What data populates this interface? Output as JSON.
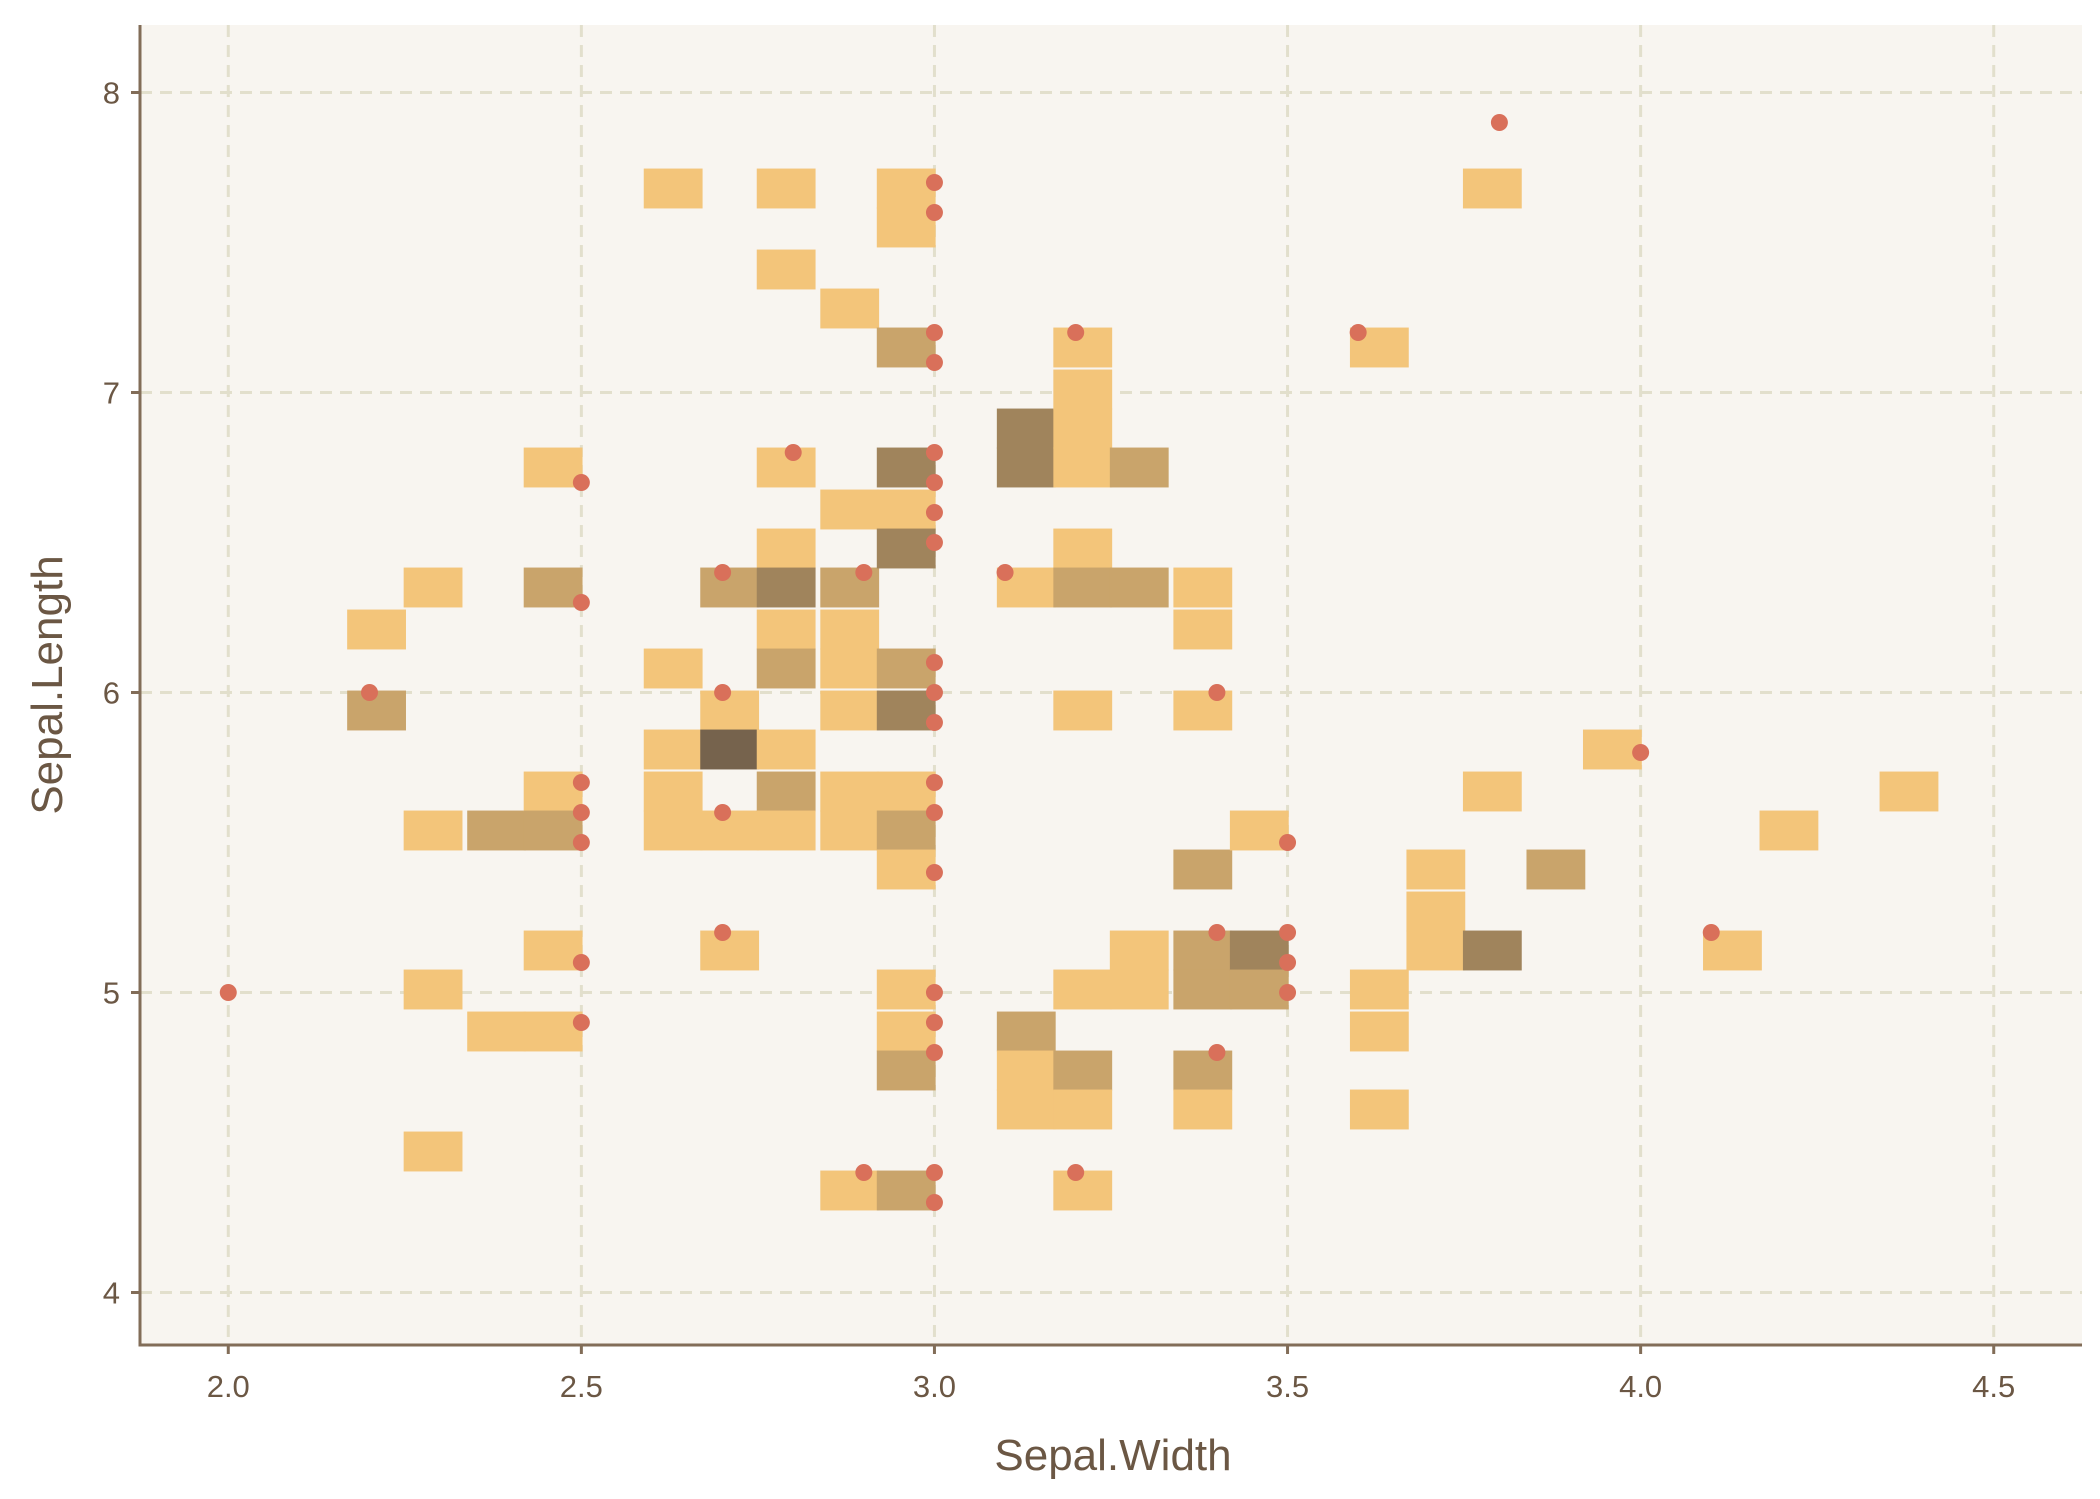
{
  "chart_data": {
    "type": "heatmap",
    "title": "",
    "xlabel": "Sepal.Width",
    "ylabel": "Sepal.Length",
    "xlim": [
      1.875,
      4.625
    ],
    "ylim": [
      3.825,
      8.225
    ],
    "grid": true,
    "legend": "none",
    "x_ticks": [
      2.0,
      2.5,
      3.0,
      3.5,
      4.0,
      4.5
    ],
    "x_tick_labels": [
      "2.0",
      "2.5",
      "3.0",
      "3.5",
      "4.0",
      "4.5"
    ],
    "y_ticks": [
      4,
      5,
      6,
      7,
      8
    ],
    "y_tick_labels": [
      "4",
      "5",
      "6",
      "7",
      "8"
    ],
    "bin_width": {
      "x": 0.0833,
      "y": 0.133
    },
    "bins_columns": [
      "x_center",
      "y_center",
      "count"
    ],
    "bins": [
      [
        2.21,
        6.21,
        1
      ],
      [
        2.21,
        5.94,
        2
      ],
      [
        2.29,
        6.35,
        1
      ],
      [
        2.29,
        5.54,
        1
      ],
      [
        2.29,
        5.01,
        1
      ],
      [
        2.29,
        4.47,
        1
      ],
      [
        2.38,
        5.54,
        2
      ],
      [
        2.38,
        4.87,
        1
      ],
      [
        2.46,
        6.75,
        1
      ],
      [
        2.46,
        6.35,
        2
      ],
      [
        2.46,
        5.67,
        1
      ],
      [
        2.46,
        5.54,
        2
      ],
      [
        2.46,
        5.14,
        1
      ],
      [
        2.46,
        4.87,
        1
      ],
      [
        2.63,
        7.68,
        1
      ],
      [
        2.63,
        6.08,
        1
      ],
      [
        2.63,
        5.81,
        1
      ],
      [
        2.63,
        5.67,
        1
      ],
      [
        2.63,
        5.54,
        1
      ],
      [
        2.71,
        6.35,
        2
      ],
      [
        2.71,
        5.94,
        1
      ],
      [
        2.71,
        5.81,
        4
      ],
      [
        2.71,
        5.54,
        1
      ],
      [
        2.71,
        5.14,
        1
      ],
      [
        2.79,
        7.68,
        1
      ],
      [
        2.79,
        7.41,
        1
      ],
      [
        2.79,
        6.75,
        1
      ],
      [
        2.79,
        6.48,
        1
      ],
      [
        2.79,
        6.35,
        3
      ],
      [
        2.79,
        6.21,
        1
      ],
      [
        2.79,
        6.08,
        2
      ],
      [
        2.79,
        5.81,
        1
      ],
      [
        2.79,
        5.67,
        2
      ],
      [
        2.79,
        5.54,
        1
      ],
      [
        2.88,
        7.28,
        1
      ],
      [
        2.88,
        6.61,
        1
      ],
      [
        2.88,
        6.35,
        2
      ],
      [
        2.88,
        6.21,
        1
      ],
      [
        2.88,
        6.08,
        1
      ],
      [
        2.88,
        5.94,
        1
      ],
      [
        2.88,
        5.67,
        1
      ],
      [
        2.88,
        5.54,
        1
      ],
      [
        2.88,
        4.34,
        1
      ],
      [
        2.96,
        7.68,
        1
      ],
      [
        2.96,
        7.55,
        1
      ],
      [
        2.96,
        7.15,
        2
      ],
      [
        2.96,
        6.75,
        3
      ],
      [
        2.96,
        6.61,
        1
      ],
      [
        2.96,
        6.48,
        3
      ],
      [
        2.96,
        6.08,
        2
      ],
      [
        2.96,
        5.94,
        3
      ],
      [
        2.96,
        5.67,
        1
      ],
      [
        2.96,
        5.54,
        2
      ],
      [
        2.96,
        5.41,
        1
      ],
      [
        2.96,
        5.01,
        1
      ],
      [
        2.96,
        4.87,
        1
      ],
      [
        2.96,
        4.74,
        2
      ],
      [
        2.96,
        4.34,
        2
      ],
      [
        3.13,
        6.88,
        3
      ],
      [
        3.13,
        6.75,
        3
      ],
      [
        3.13,
        6.35,
        1
      ],
      [
        3.13,
        4.87,
        2
      ],
      [
        3.13,
        4.74,
        1
      ],
      [
        3.13,
        4.61,
        1
      ],
      [
        3.21,
        7.15,
        1
      ],
      [
        3.21,
        7.01,
        1
      ],
      [
        3.21,
        6.88,
        1
      ],
      [
        3.21,
        6.75,
        1
      ],
      [
        3.21,
        6.48,
        1
      ],
      [
        3.21,
        6.35,
        2
      ],
      [
        3.21,
        5.94,
        1
      ],
      [
        3.21,
        5.01,
        1
      ],
      [
        3.21,
        4.74,
        2
      ],
      [
        3.21,
        4.61,
        1
      ],
      [
        3.21,
        4.34,
        1
      ],
      [
        3.29,
        6.75,
        2
      ],
      [
        3.29,
        6.35,
        2
      ],
      [
        3.29,
        5.14,
        1
      ],
      [
        3.29,
        5.01,
        1
      ],
      [
        3.38,
        6.35,
        1
      ],
      [
        3.38,
        6.21,
        1
      ],
      [
        3.38,
        5.94,
        1
      ],
      [
        3.38,
        5.41,
        2
      ],
      [
        3.38,
        5.14,
        2
      ],
      [
        3.38,
        5.01,
        2
      ],
      [
        3.38,
        4.74,
        2
      ],
      [
        3.38,
        4.61,
        1
      ],
      [
        3.46,
        5.54,
        1
      ],
      [
        3.46,
        5.14,
        3
      ],
      [
        3.46,
        5.01,
        2
      ],
      [
        3.63,
        7.15,
        1
      ],
      [
        3.63,
        5.01,
        1
      ],
      [
        3.63,
        4.87,
        1
      ],
      [
        3.63,
        4.61,
        1
      ],
      [
        3.71,
        5.41,
        1
      ],
      [
        3.71,
        5.27,
        1
      ],
      [
        3.71,
        5.14,
        1
      ],
      [
        3.79,
        7.68,
        1
      ],
      [
        3.79,
        5.67,
        1
      ],
      [
        3.79,
        5.14,
        3
      ],
      [
        3.88,
        5.41,
        2
      ],
      [
        3.96,
        5.81,
        1
      ],
      [
        4.13,
        5.14,
        1
      ],
      [
        4.21,
        5.54,
        1
      ],
      [
        4.38,
        5.67,
        1
      ]
    ],
    "points_columns": [
      "x",
      "y"
    ],
    "points": [
      [
        2.0,
        5.0
      ],
      [
        2.2,
        6.0
      ],
      [
        2.5,
        6.7
      ],
      [
        2.5,
        6.3
      ],
      [
        2.5,
        5.7
      ],
      [
        2.5,
        5.6
      ],
      [
        2.5,
        5.5
      ],
      [
        2.5,
        5.1
      ],
      [
        2.5,
        4.9
      ],
      [
        2.7,
        6.4
      ],
      [
        2.7,
        6.0
      ],
      [
        2.7,
        5.6
      ],
      [
        2.7,
        5.2
      ],
      [
        2.8,
        6.8
      ],
      [
        2.9,
        6.4
      ],
      [
        2.9,
        4.4
      ],
      [
        3.0,
        7.7
      ],
      [
        3.0,
        7.6
      ],
      [
        3.0,
        7.2
      ],
      [
        3.0,
        7.1
      ],
      [
        3.0,
        6.8
      ],
      [
        3.0,
        6.7
      ],
      [
        3.0,
        6.6
      ],
      [
        3.0,
        6.5
      ],
      [
        3.0,
        6.1
      ],
      [
        3.0,
        6.0
      ],
      [
        3.0,
        5.9
      ],
      [
        3.0,
        5.7
      ],
      [
        3.0,
        5.6
      ],
      [
        3.0,
        5.4
      ],
      [
        3.0,
        5.0
      ],
      [
        3.0,
        4.9
      ],
      [
        3.0,
        4.8
      ],
      [
        3.0,
        4.4
      ],
      [
        3.0,
        4.3
      ],
      [
        3.1,
        6.4
      ],
      [
        3.2,
        7.2
      ],
      [
        3.2,
        4.4
      ],
      [
        3.4,
        6.0
      ],
      [
        3.4,
        5.2
      ],
      [
        3.4,
        4.8
      ],
      [
        3.5,
        5.5
      ],
      [
        3.5,
        5.2
      ],
      [
        3.5,
        5.1
      ],
      [
        3.5,
        5.0
      ],
      [
        3.6,
        7.2
      ],
      [
        3.8,
        7.9
      ],
      [
        4.0,
        5.8
      ],
      [
        4.1,
        5.2
      ]
    ],
    "colors": {
      "panel_background": "#f8f5f0",
      "grid_line": "#e2dfcc",
      "axis_line": "#826d58",
      "text": "#6b5744",
      "point": "#d9705a",
      "bin_low": "#f3c57a",
      "bin_high": "#76634d"
    }
  }
}
